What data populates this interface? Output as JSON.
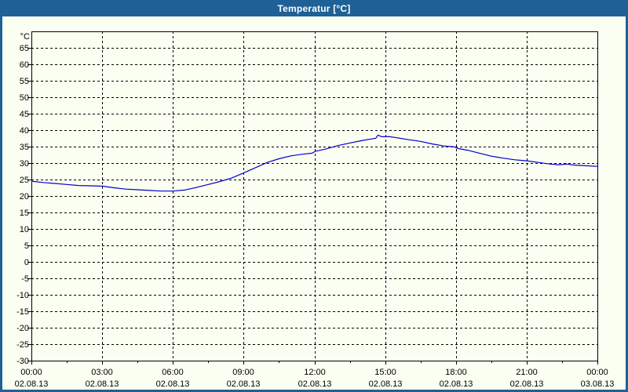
{
  "window": {
    "title": "Temperatur [°C]"
  },
  "colors": {
    "titlebar": "#1f6096",
    "window_border": "#1f6096",
    "background": "#fbfff2",
    "axis": "#000000",
    "grid": "#000000",
    "line": "#0000cd",
    "label_text": "#000000",
    "title_text": "#ffffff"
  },
  "chart_data": {
    "type": "line",
    "title": "Temperatur [°C]",
    "ylabel": "°C",
    "xlabel": "",
    "ylim": [
      -30,
      70
    ],
    "ytick_step": 5,
    "yticks": [
      65,
      60,
      55,
      50,
      45,
      40,
      35,
      30,
      25,
      20,
      15,
      10,
      5,
      0,
      -5,
      -10,
      -15,
      -20,
      -25,
      -30
    ],
    "x_hours_range": [
      0,
      24
    ],
    "x_major_step_hours": 3,
    "x_minor_step_hours": 1.5,
    "grid": "dashed",
    "legend": "none",
    "x_ticks": [
      {
        "hour": 0,
        "time": "00:00",
        "date": "02.08.13"
      },
      {
        "hour": 3,
        "time": "03:00",
        "date": "02.08.13"
      },
      {
        "hour": 6,
        "time": "06:00",
        "date": "02.08.13"
      },
      {
        "hour": 9,
        "time": "09:00",
        "date": "02.08.13"
      },
      {
        "hour": 12,
        "time": "12:00",
        "date": "02.08.13"
      },
      {
        "hour": 15,
        "time": "15:00",
        "date": "02.08.13"
      },
      {
        "hour": 18,
        "time": "18:00",
        "date": "02.08.13"
      },
      {
        "hour": 21,
        "time": "21:00",
        "date": "02.08.13"
      },
      {
        "hour": 24,
        "time": "00:00",
        "date": "03.08.13"
      }
    ],
    "series": [
      {
        "name": "Temperatur",
        "unit": "°C",
        "color": "#0000cd",
        "points": [
          [
            0,
            24.5
          ],
          [
            0.5,
            24.1
          ],
          [
            1,
            23.8
          ],
          [
            1.5,
            23.5
          ],
          [
            2,
            23.2
          ],
          [
            2.5,
            23.1
          ],
          [
            3,
            23.0
          ],
          [
            3.5,
            22.5
          ],
          [
            4,
            22.1
          ],
          [
            4.5,
            21.9
          ],
          [
            5,
            21.7
          ],
          [
            5.5,
            21.5
          ],
          [
            6,
            21.5
          ],
          [
            6.5,
            21.8
          ],
          [
            7,
            22.6
          ],
          [
            7.5,
            23.5
          ],
          [
            8,
            24.4
          ],
          [
            8.5,
            25.5
          ],
          [
            9,
            27.0
          ],
          [
            9.5,
            28.6
          ],
          [
            10,
            30.2
          ],
          [
            10.5,
            31.3
          ],
          [
            11,
            32.2
          ],
          [
            11.5,
            32.7
          ],
          [
            11.9,
            33.0
          ],
          [
            12.05,
            33.6
          ],
          [
            12.5,
            34.3
          ],
          [
            13,
            35.3
          ],
          [
            13.5,
            36.1
          ],
          [
            14,
            36.8
          ],
          [
            14.4,
            37.3
          ],
          [
            14.6,
            37.5
          ],
          [
            14.7,
            38.5
          ],
          [
            14.85,
            38.0
          ],
          [
            15.2,
            38.0
          ],
          [
            15.5,
            37.7
          ],
          [
            16,
            37.1
          ],
          [
            16.5,
            36.6
          ],
          [
            17,
            35.8
          ],
          [
            17.5,
            35.2
          ],
          [
            17.95,
            34.9
          ],
          [
            18.1,
            34.4
          ],
          [
            18.5,
            33.9
          ],
          [
            19,
            33.0
          ],
          [
            19.5,
            32.1
          ],
          [
            20,
            31.5
          ],
          [
            20.5,
            31.0
          ],
          [
            21,
            30.7
          ],
          [
            21.5,
            30.2
          ],
          [
            22,
            29.7
          ],
          [
            22.4,
            29.5
          ],
          [
            22.7,
            29.7
          ],
          [
            23,
            29.4
          ],
          [
            23.5,
            29.2
          ],
          [
            24,
            29.0
          ]
        ]
      }
    ]
  }
}
